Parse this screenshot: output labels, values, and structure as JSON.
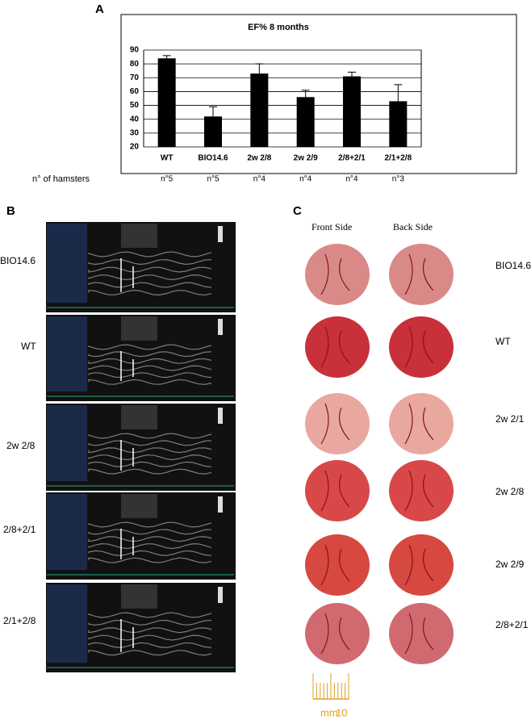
{
  "chart_data": {
    "type": "bar",
    "panel": "A",
    "title": "EF% 8 months",
    "categories": [
      "WT",
      "BIO14.6",
      "2w 2/8",
      "2w 2/9",
      "2/8+2/1",
      "2/1+2/8"
    ],
    "values": [
      84,
      42,
      73,
      56,
      71,
      53
    ],
    "errors": [
      2,
      7,
      7,
      5,
      3,
      12
    ],
    "color": "#000000",
    "ylim": [
      20,
      90
    ],
    "yticks": [
      20,
      30,
      40,
      50,
      60,
      70,
      80,
      90
    ],
    "grid": true,
    "count_label": "n° of hamsters",
    "counts": [
      "n°5",
      "n°5",
      "n°4",
      "n°4",
      "n°4",
      "n°3"
    ]
  },
  "panel_b": {
    "label": "B",
    "rows": [
      "BIO14.6",
      "WT",
      "2w 2/8",
      "2/8+2/1",
      "2/1+2/8"
    ]
  },
  "panel_c": {
    "label": "C",
    "columns": [
      "Front Side",
      "Back Side"
    ],
    "rows": [
      "BIO14.6",
      "WT",
      "2w 2/1",
      "2w 2/8",
      "2w 2/9",
      "2/8+2/1"
    ],
    "scale_unit": "mm",
    "scale_value": "10"
  }
}
